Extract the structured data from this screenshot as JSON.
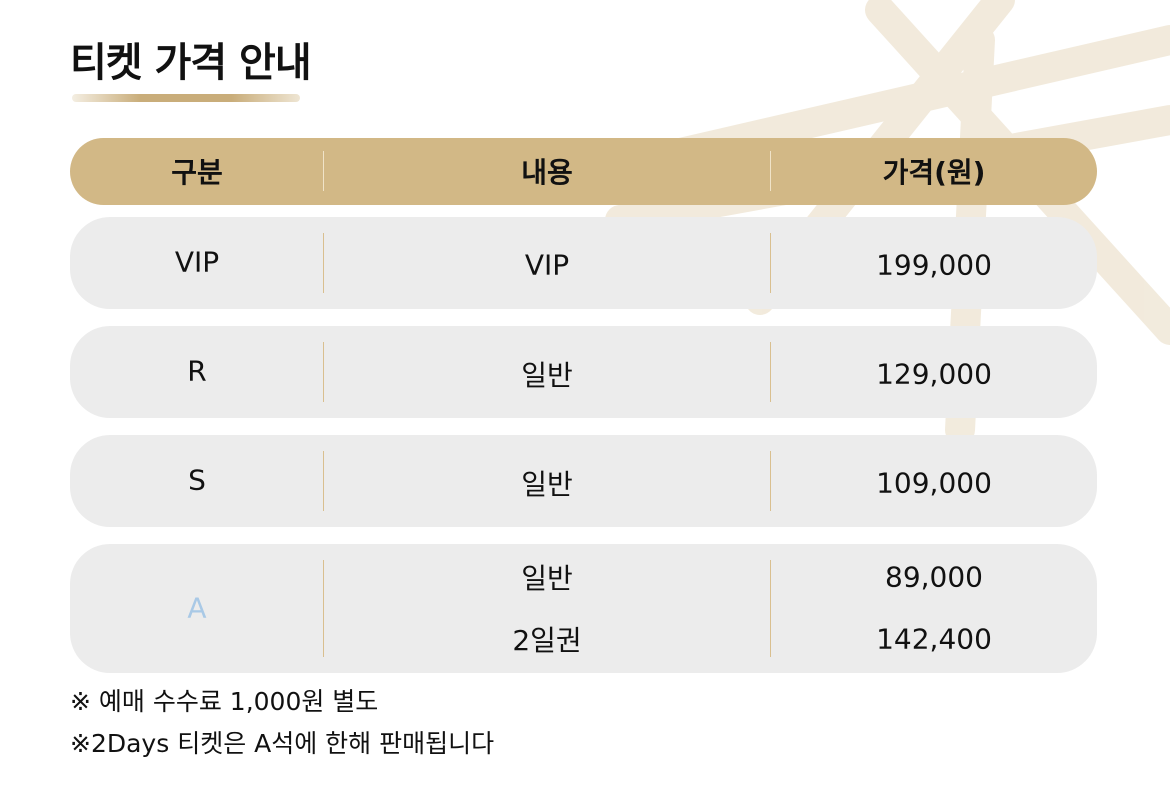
{
  "header": {
    "title": "티켓 가격 안내"
  },
  "table": {
    "columns": [
      "구분",
      "내용",
      "가격(원)"
    ],
    "rows": [
      {
        "grade": "VIP",
        "items": [
          {
            "content": "VIP",
            "price": "199,000"
          }
        ]
      },
      {
        "grade": "R",
        "items": [
          {
            "content": "일반",
            "price": "129,000"
          }
        ]
      },
      {
        "grade": "S",
        "items": [
          {
            "content": "일반",
            "price": "109,000"
          }
        ]
      },
      {
        "grade": "A",
        "items": [
          {
            "content": "일반",
            "price": "89,000"
          },
          {
            "content": "2일권",
            "price": "142,400"
          }
        ]
      }
    ]
  },
  "notes": [
    "※ 예매 수수료 1,000원 별도",
    "※2Days 티켓은 A석에 한해 판매됩니다"
  ]
}
